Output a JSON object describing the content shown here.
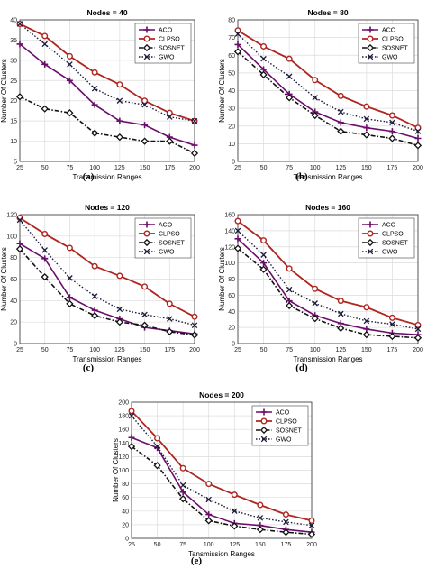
{
  "charts": [
    {
      "caption": "(a)",
      "chart_data": {
        "type": "line",
        "title": "Nodes = 40",
        "xlabel": "Transmission Ranges",
        "ylabel": "Number Of Clusters",
        "x": [
          25,
          50,
          75,
          100,
          125,
          150,
          175,
          200
        ],
        "ylim": [
          5,
          40
        ],
        "yticks": [
          5,
          10,
          15,
          20,
          25,
          30,
          35,
          40
        ],
        "grid": true,
        "legend_position": "top-right",
        "series": [
          {
            "name": "ACO",
            "values": [
              34,
              29,
              25,
              19,
              15,
              14,
              11,
              9
            ]
          },
          {
            "name": "CLPSO",
            "values": [
              39,
              36,
              31,
              27,
              24,
              20,
              17,
              15
            ]
          },
          {
            "name": "SOSNET",
            "values": [
              21,
              18,
              17,
              12,
              11,
              10,
              10,
              7
            ]
          },
          {
            "name": "GWO",
            "values": [
              39,
              34,
              29,
              23,
              20,
              19,
              16,
              15
            ]
          }
        ]
      }
    },
    {
      "caption": "(b)",
      "chart_data": {
        "type": "line",
        "title": "Nodes = 80",
        "xlabel": "Transmission Ranges",
        "ylabel": "Number Of Clusters",
        "x": [
          25,
          50,
          75,
          100,
          125,
          150,
          175,
          200
        ],
        "ylim": [
          0,
          80
        ],
        "yticks": [
          0,
          10,
          20,
          30,
          40,
          50,
          60,
          70,
          80
        ],
        "grid": true,
        "legend_position": "top-right",
        "series": [
          {
            "name": "ACO",
            "values": [
              66,
              52,
              38,
              28,
              22,
              19,
              17,
              13
            ]
          },
          {
            "name": "CLPSO",
            "values": [
              74,
              65,
              58,
              46,
              37,
              31,
              26,
              19
            ]
          },
          {
            "name": "SOSNET",
            "values": [
              62,
              49,
              36,
              26,
              17,
              15,
              13,
              9
            ]
          },
          {
            "name": "GWO",
            "values": [
              72,
              58,
              48,
              36,
              28,
              24,
              22,
              17
            ]
          }
        ]
      }
    },
    {
      "caption": "(c)",
      "chart_data": {
        "type": "line",
        "title": "Nodes = 120",
        "xlabel": "Transmission Ranges",
        "ylabel": "Number Of Clusters",
        "x": [
          25,
          50,
          75,
          100,
          125,
          150,
          175,
          200
        ],
        "ylim": [
          0,
          120
        ],
        "yticks": [
          0,
          20,
          40,
          60,
          80,
          100,
          120
        ],
        "grid": true,
        "legend_position": "top-right",
        "series": [
          {
            "name": "ACO",
            "values": [
              93,
              79,
              43,
              31,
              23,
              15,
              12,
              9
            ]
          },
          {
            "name": "CLPSO",
            "values": [
              117,
              102,
              89,
              72,
              63,
              53,
              37,
              25
            ]
          },
          {
            "name": "SOSNET",
            "values": [
              88,
              62,
              37,
              26,
              20,
              17,
              11,
              8
            ]
          },
          {
            "name": "GWO",
            "values": [
              115,
              87,
              61,
              44,
              32,
              27,
              23,
              17
            ]
          }
        ]
      }
    },
    {
      "caption": "(d)",
      "chart_data": {
        "type": "line",
        "title": "Nodes = 160",
        "xlabel": "Transmission Ranges",
        "ylabel": "Number Of Clusters",
        "x": [
          25,
          50,
          75,
          100,
          125,
          150,
          175,
          200
        ],
        "ylim": [
          0,
          160
        ],
        "yticks": [
          0,
          20,
          40,
          60,
          80,
          100,
          120,
          140,
          160
        ],
        "grid": true,
        "legend_position": "top-right",
        "series": [
          {
            "name": "ACO",
            "values": [
              130,
              100,
              53,
              35,
              25,
              18,
              13,
              11
            ]
          },
          {
            "name": "CLPSO",
            "values": [
              152,
              128,
              93,
              68,
              53,
              45,
              32,
              23
            ]
          },
          {
            "name": "SOSNET",
            "values": [
              118,
              92,
              47,
              31,
              19,
              11,
              9,
              7
            ]
          },
          {
            "name": "GWO",
            "values": [
              140,
              110,
              67,
              50,
              37,
              28,
              24,
              18
            ]
          }
        ]
      }
    },
    {
      "caption": "(e)",
      "chart_data": {
        "type": "line",
        "title": "Nodes = 200",
        "xlabel": "Tansmission Ranges",
        "ylabel": "Number Of Clusters",
        "x": [
          25,
          50,
          75,
          100,
          125,
          150,
          175,
          200
        ],
        "ylim": [
          0,
          200
        ],
        "yticks": [
          0,
          20,
          40,
          60,
          80,
          100,
          120,
          140,
          160,
          180,
          200
        ],
        "grid": true,
        "legend_position": "top-right",
        "series": [
          {
            "name": "ACO",
            "values": [
              148,
              133,
              68,
              35,
              22,
              19,
              13,
              9
            ]
          },
          {
            "name": "CLPSO",
            "values": [
              187,
              147,
              103,
              80,
              64,
              49,
              35,
              26
            ]
          },
          {
            "name": "SOSNET",
            "values": [
              135,
              107,
              58,
              26,
              18,
              13,
              9,
              6
            ]
          },
          {
            "name": "GWO",
            "values": [
              180,
              135,
              78,
              57,
              40,
              30,
              24,
              19
            ]
          }
        ]
      }
    }
  ],
  "colors": {
    "ACO": "#6b0d6b",
    "CLPSO": "#b02520",
    "SOSNET": "#111111",
    "GWO": "#1a1a3a",
    "grid": "#dcdcdc",
    "axis": "#333333"
  }
}
